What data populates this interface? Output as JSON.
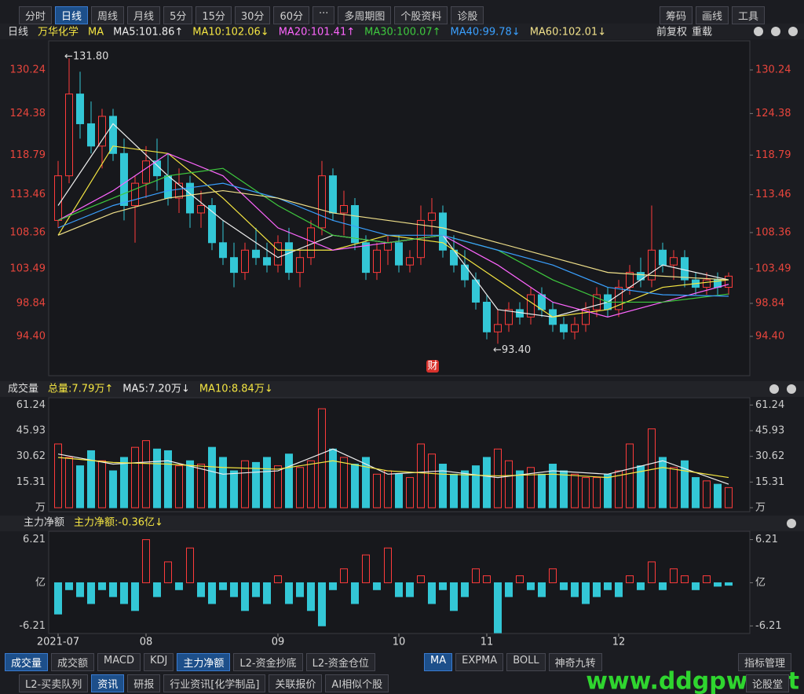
{
  "toolbar": {
    "left": [
      "分时",
      "日线",
      "周线",
      "月线",
      "5分",
      "15分",
      "30分",
      "60分",
      "···",
      "多周期图",
      "个股资料",
      "诊股"
    ],
    "right": [
      "筹码",
      "画线",
      "工具"
    ]
  },
  "chart_data": [
    {
      "type": "candlestick",
      "period": "日线",
      "stock": "万华化学",
      "indicator": "MA",
      "adjust": "前复权",
      "reload": "重载",
      "badge": "财",
      "tick_color": "#e8453c",
      "up_color": "#ff3b3b",
      "down_color": "#33c7d6",
      "ylim": [
        89.11,
        134.15
      ],
      "yticks": [
        {
          "value": 94.4,
          "label": "94.40"
        },
        98.84,
        103.49,
        108.36,
        113.46,
        118.79,
        124.38,
        130.24
      ],
      "candles": [
        [
          110,
          118,
          109,
          116
        ],
        [
          116,
          131.8,
          115,
          127
        ],
        [
          127,
          130,
          121,
          123
        ],
        [
          123,
          126,
          119,
          120
        ],
        [
          120,
          125,
          117,
          124
        ],
        [
          124,
          125,
          118,
          119
        ],
        [
          119,
          121,
          110,
          112
        ],
        [
          112,
          116,
          107,
          115
        ],
        [
          115,
          120,
          113,
          118
        ],
        [
          118,
          121,
          114,
          116
        ],
        [
          116,
          119,
          112,
          113
        ],
        [
          113,
          117,
          111,
          115
        ],
        [
          115,
          116,
          109,
          111
        ],
        [
          111,
          114,
          109,
          112
        ],
        [
          112,
          113,
          106,
          107
        ],
        [
          107,
          110,
          104,
          105
        ],
        [
          105,
          107,
          101,
          103
        ],
        [
          103,
          107,
          102,
          106
        ],
        [
          106,
          109,
          104,
          105
        ],
        [
          105,
          107,
          103,
          104
        ],
        [
          104,
          108,
          103,
          107
        ],
        [
          107,
          109,
          102,
          103
        ],
        [
          103,
          106,
          101,
          105
        ],
        [
          105,
          110,
          104,
          109
        ],
        [
          109,
          118,
          108,
          116
        ],
        [
          116,
          117,
          110,
          111
        ],
        [
          111,
          114,
          108,
          112
        ],
        [
          112,
          113,
          106,
          107
        ],
        [
          107,
          108,
          102,
          103
        ],
        [
          103,
          107,
          102,
          106
        ],
        [
          106,
          108,
          104,
          107
        ],
        [
          107,
          108,
          103,
          104
        ],
        [
          104,
          106,
          103,
          105
        ],
        [
          105,
          112,
          104,
          110
        ],
        [
          110,
          113,
          108,
          111
        ],
        [
          111,
          112,
          105,
          106
        ],
        [
          106,
          108,
          103,
          104
        ],
        [
          104,
          106,
          101,
          102
        ],
        [
          102,
          103,
          98,
          99
        ],
        [
          99,
          100,
          94,
          95
        ],
        [
          95,
          98,
          93.4,
          96
        ],
        [
          96,
          99,
          95,
          98
        ],
        [
          98,
          99,
          96,
          97
        ],
        [
          97,
          101,
          96,
          100
        ],
        [
          100,
          101,
          97,
          98
        ],
        [
          98,
          99,
          95,
          96
        ],
        [
          96,
          97,
          94,
          95
        ],
        [
          95,
          97,
          94,
          96
        ],
        [
          96,
          99,
          95,
          98
        ],
        [
          98,
          101,
          97,
          100
        ],
        [
          100,
          101,
          97,
          98
        ],
        [
          98,
          102,
          97,
          101
        ],
        [
          101,
          104,
          100,
          103
        ],
        [
          103,
          105,
          101,
          102
        ],
        [
          102,
          112,
          101,
          106
        ],
        [
          106,
          107,
          103,
          104
        ],
        [
          104,
          106,
          102,
          105
        ],
        [
          105,
          106,
          101,
          102
        ],
        [
          102,
          103,
          100,
          101
        ],
        [
          101,
          103,
          100,
          102
        ],
        [
          102,
          103,
          100,
          101
        ],
        [
          101,
          103,
          100,
          102.5
        ]
      ],
      "lines": {
        "x": [
          0,
          5,
          10,
          15,
          20,
          25,
          30,
          35,
          40,
          45,
          50,
          55,
          61
        ],
        "series": [
          {
            "label": "MA5:101.86↑",
            "color": "#eeeeee",
            "values": [
              112,
              123,
              116,
              110,
              105,
              108,
              107,
              108,
              98,
              97,
              99,
              104,
              102
            ]
          },
          {
            "label": "MA10:102.06↓",
            "color": "#f5e642",
            "values": [
              108,
              120,
              119,
              113,
              106,
              106,
              108,
              107,
              102,
              97,
              98,
              101,
              102
            ]
          },
          {
            "label": "MA20:101.41↑",
            "color": "#ff66ff",
            "values": [
              110,
              114,
              119,
              116,
              109,
              106,
              107,
              108,
              104,
              99,
              97,
              99,
              101.4
            ]
          },
          {
            "label": "MA30:100.07↑",
            "color": "#3ec93e",
            "values": [
              110,
              113,
              116,
              117,
              112,
              108,
              107,
              108,
              106,
              102,
              99,
              99,
              100.1
            ]
          },
          {
            "label": "MA40:99.78↓",
            "color": "#3aa0ff",
            "values": [
              109,
              112,
              114,
              115,
              113,
              110,
              108,
              108,
              106,
              104,
              101,
              100,
              99.8
            ]
          },
          {
            "label": "MA60:102.01↓",
            "color": "#f0e08a",
            "values": [
              108,
              111,
              113,
              114,
              113,
              111,
              110,
              109,
              107,
              105,
              103,
              102.5,
              102
            ]
          }
        ]
      },
      "annotations": [
        {
          "label": "←131.80",
          "value": 131.8,
          "at": "high"
        },
        {
          "label": "←93.40",
          "value": 93.4,
          "at": "low"
        }
      ]
    },
    {
      "type": "bar",
      "color_by": "price",
      "title": "成交量",
      "total_label": "总量:7.79万↑",
      "tick_color": "#cccccc",
      "up_color": "#ff3b3b",
      "down_color": "#33c7d6",
      "ylim": [
        0,
        65.6
      ],
      "yticks": [
        {
          "value": 0,
          "label": "万"
        },
        15.31,
        30.62,
        45.93,
        61.24
      ],
      "values": [
        38,
        30,
        25,
        34,
        28,
        22,
        30,
        36,
        40,
        35,
        34,
        25,
        28,
        26,
        36,
        30,
        22,
        28,
        27,
        30,
        25,
        32,
        24,
        28,
        59,
        35,
        30,
        26,
        30,
        20,
        22,
        20,
        18,
        38,
        32,
        26,
        20,
        22,
        25,
        30,
        35,
        28,
        22,
        24,
        20,
        26,
        22,
        20,
        18,
        18,
        20,
        22,
        38,
        25,
        47,
        30,
        24,
        28,
        18,
        16,
        14,
        12
      ],
      "lines": {
        "x": [
          0,
          5,
          10,
          15,
          20,
          25,
          30,
          35,
          40,
          45,
          50,
          55,
          61
        ],
        "series": [
          {
            "label": "MA5:7.20万↓",
            "color": "#eeeeee",
            "values": [
              32,
              26,
              28,
              20,
              22,
              35,
              20,
              22,
              18,
              22,
              20,
              28,
              14
            ]
          },
          {
            "label": "MA10:8.84万↓",
            "color": "#f5e642",
            "values": [
              30,
              27,
              26,
              24,
              23,
              28,
              22,
              20,
              19,
              20,
              18,
              24,
              18
            ]
          }
        ]
      }
    },
    {
      "type": "bar",
      "color_by": "sign",
      "title": "主力净额",
      "total_label": "主力净额:-0.36亿↓",
      "tick_color": "#cccccc",
      "up_color": "#ff3b3b",
      "down_color": "#33c7d6",
      "ylim": [
        -7.3,
        7.4
      ],
      "yticks": [
        -6.21,
        {
          "value": 0,
          "label": "亿"
        },
        6.21
      ],
      "values": [
        -4.5,
        -1,
        -2,
        -3,
        -1,
        -2,
        -3,
        -4,
        6.2,
        -2,
        3,
        -1,
        5,
        -2,
        -3,
        -1,
        -2,
        -4,
        -2,
        -3,
        1,
        -3,
        -2,
        -4,
        -6.2,
        -1,
        2,
        -3,
        4,
        -1,
        5,
        -2,
        -2,
        1,
        -3,
        -1,
        -4,
        -2,
        2,
        1,
        -7.2,
        -2,
        1,
        -1,
        -2,
        2,
        -1,
        -2,
        -3,
        -2,
        -1,
        -2,
        1,
        -1,
        3,
        -1,
        2,
        1,
        -1,
        1,
        -0.5,
        -0.36
      ],
      "categories": [
        "2021-07",
        null,
        null,
        null,
        null,
        null,
        null,
        null,
        "08",
        null,
        null,
        null,
        null,
        null,
        null,
        null,
        null,
        null,
        null,
        null,
        "09",
        null,
        null,
        null,
        null,
        null,
        null,
        null,
        null,
        null,
        null,
        "10",
        null,
        null,
        null,
        null,
        null,
        null,
        null,
        "11",
        null,
        null,
        null,
        null,
        null,
        null,
        null,
        null,
        null,
        null,
        null,
        "12",
        null,
        null,
        null,
        null,
        null,
        null,
        null,
        null,
        null,
        null
      ]
    }
  ],
  "bottom_tabs": {
    "indicators": [
      "成交量",
      "成交额",
      "MACD",
      "KDJ",
      "主力净额",
      "L2-资金抄底",
      "L2-资金仓位"
    ],
    "overlays": [
      "MA",
      "EXPMA",
      "BOLL",
      "神奇九转"
    ],
    "manage": "指标管理",
    "panels": [
      "L2-买卖队列",
      "资讯",
      "研报",
      "行业资讯[化学制品]",
      "关联报价",
      "AI相似个股"
    ],
    "forum": "论股堂"
  },
  "watermark": "www.ddgpw.net"
}
